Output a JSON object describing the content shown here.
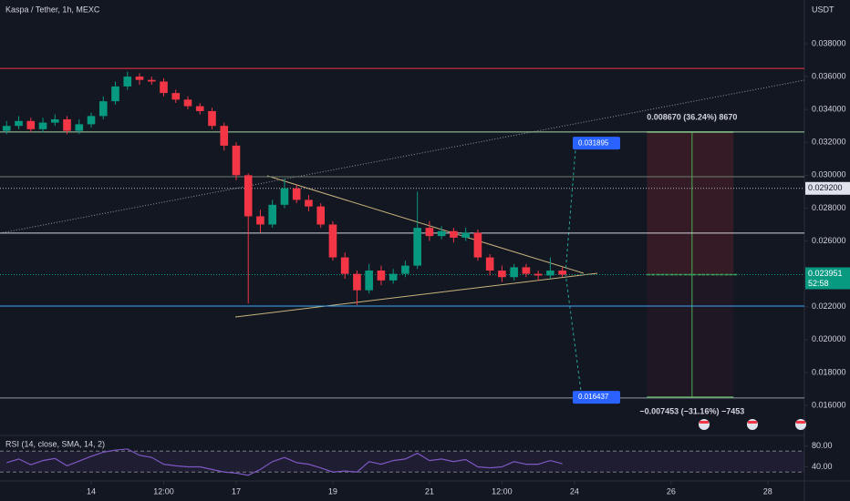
{
  "chart_data": {
    "type": "candlestick",
    "title": "Kaspa / Tether, 1h, MEXC",
    "y_axis_label": "USDT",
    "x": [
      -42,
      -36,
      -30,
      -24,
      -18,
      -12,
      -6,
      0,
      6,
      12,
      18,
      24,
      30,
      36,
      42,
      48,
      54,
      60,
      66,
      72,
      78,
      84,
      90,
      96,
      102,
      108,
      114,
      120,
      126,
      132,
      138,
      144,
      150,
      156,
      162,
      168,
      174,
      180,
      186,
      192,
      198,
      204,
      210,
      216,
      222,
      228,
      234
    ],
    "open": [
      0.0327,
      0.033,
      0.0333,
      0.0328,
      0.0332,
      0.0334,
      0.0327,
      0.0331,
      0.0336,
      0.0345,
      0.0354,
      0.036,
      0.0358,
      0.0357,
      0.035,
      0.0346,
      0.0342,
      0.0339,
      0.033,
      0.0318,
      0.03,
      0.0275,
      0.027,
      0.0282,
      0.0292,
      0.0285,
      0.0281,
      0.027,
      0.025,
      0.024,
      0.023,
      0.0242,
      0.0236,
      0.024,
      0.0245,
      0.0268,
      0.0263,
      0.0266,
      0.0262,
      0.0265,
      0.025,
      0.0242,
      0.0238,
      0.0244,
      0.024,
      0.0239,
      0.0242
    ],
    "high": [
      0.0333,
      0.0336,
      0.0335,
      0.0335,
      0.0337,
      0.0336,
      0.0334,
      0.0338,
      0.0348,
      0.0357,
      0.0363,
      0.0362,
      0.036,
      0.0359,
      0.0352,
      0.0348,
      0.0344,
      0.0341,
      0.0332,
      0.032,
      0.0301,
      0.0279,
      0.0285,
      0.0298,
      0.0294,
      0.0288,
      0.0283,
      0.0272,
      0.0253,
      0.0242,
      0.0246,
      0.0245,
      0.0243,
      0.0248,
      0.029,
      0.0272,
      0.0269,
      0.0268,
      0.0268,
      0.0267,
      0.0252,
      0.0245,
      0.0246,
      0.0246,
      0.0242,
      0.025,
      0.0244
    ],
    "low": [
      0.0325,
      0.0328,
      0.0326,
      0.0326,
      0.033,
      0.0325,
      0.0325,
      0.0329,
      0.0334,
      0.0343,
      0.0352,
      0.0355,
      0.0355,
      0.0348,
      0.0344,
      0.034,
      0.0337,
      0.0328,
      0.0315,
      0.0297,
      0.0222,
      0.0265,
      0.0268,
      0.028,
      0.0283,
      0.0278,
      0.0268,
      0.0248,
      0.0237,
      0.0221,
      0.0228,
      0.0233,
      0.0234,
      0.0238,
      0.0243,
      0.026,
      0.0261,
      0.0259,
      0.026,
      0.0248,
      0.0239,
      0.0235,
      0.0236,
      0.0238,
      0.0236,
      0.0237,
      0.0238
    ],
    "close": [
      0.033,
      0.0333,
      0.0328,
      0.0332,
      0.0334,
      0.0327,
      0.0331,
      0.0336,
      0.0345,
      0.0354,
      0.036,
      0.0358,
      0.0357,
      0.035,
      0.0346,
      0.0342,
      0.0339,
      0.033,
      0.0318,
      0.03,
      0.0275,
      0.027,
      0.0282,
      0.0292,
      0.0285,
      0.0281,
      0.027,
      0.025,
      0.024,
      0.023,
      0.0242,
      0.0236,
      0.024,
      0.0245,
      0.0268,
      0.0263,
      0.0266,
      0.0262,
      0.0265,
      0.025,
      0.0242,
      0.0238,
      0.0244,
      0.024,
      0.0239,
      0.0242,
      0.023951
    ],
    "up_color": "#089981",
    "down_color": "#f23645",
    "countdown": "52:58",
    "xlim": [
      -45.3,
      354.2
    ],
    "xticks": [
      {
        "value": 0,
        "label": "14"
      },
      {
        "value": 36,
        "label": "12:00"
      },
      {
        "value": 72,
        "label": "17"
      },
      {
        "value": 120,
        "label": "19"
      },
      {
        "value": 168,
        "label": "21"
      },
      {
        "value": 204,
        "label": "12:00"
      },
      {
        "value": 240,
        "label": "24"
      },
      {
        "value": 288,
        "label": "26"
      },
      {
        "value": 336,
        "label": "28"
      }
    ],
    "ylim": [
      0.01417,
      0.04066
    ],
    "yticks": [
      {
        "value": 0.016,
        "label": "0.016000"
      },
      {
        "value": 0.018,
        "label": "0.018000"
      },
      {
        "value": 0.02,
        "label": "0.020000"
      },
      {
        "value": 0.022,
        "label": "0.022000"
      },
      {
        "value": 0.024,
        "label": "0.024000"
      },
      {
        "value": 0.026,
        "label": "0.026000"
      },
      {
        "value": 0.028,
        "label": "0.028000"
      },
      {
        "value": 0.03,
        "label": "0.030000"
      },
      {
        "value": 0.032,
        "label": "0.032000"
      },
      {
        "value": 0.034,
        "label": "0.034000"
      },
      {
        "value": 0.036,
        "label": "0.036000"
      },
      {
        "value": 0.038,
        "label": "0.038000"
      }
    ],
    "levels": [
      {
        "value": 0.0365,
        "color": "#f23645"
      },
      {
        "value": 0.03263,
        "color": "#a5d6a7"
      },
      {
        "value": 0.02991,
        "color": "#6f7f6c"
      },
      {
        "value": 0.0292,
        "label": "0.029200",
        "color": "#b2b5be",
        "dash": true
      },
      {
        "value": 0.02648,
        "color": "#d1d4dc"
      },
      {
        "value": 0.02204,
        "color": "#42a5f5"
      },
      {
        "value": 0.01645,
        "color": "#9598a1"
      }
    ],
    "position": {
      "target": 0.032621,
      "stop": 0.016498,
      "start": 276,
      "end": 319,
      "target_label": "0.008670 (36.24%) 8670",
      "stop_label": "−0.007453 (−31.16%) −7453"
    },
    "projection_tags": [
      {
        "value": 0.031895,
        "label": "0.031895"
      },
      {
        "value": 0.016437,
        "label": "0.016437"
      }
    ],
    "rsi": {
      "title": "RSI (14, close, SMA, 14, 2)",
      "color": "#7e57c2",
      "values": [
        48,
        55,
        44,
        52,
        56,
        42,
        51,
        60,
        68,
        72,
        74,
        62,
        58,
        45,
        42,
        40,
        40,
        35,
        30,
        28,
        24,
        35,
        50,
        58,
        48,
        45,
        38,
        30,
        32,
        30,
        50,
        45,
        52,
        55,
        66,
        52,
        55,
        50,
        54,
        40,
        38,
        40,
        50,
        45,
        45,
        52,
        46
      ],
      "ylim": [
        20,
        100
      ],
      "yticks": [
        {
          "value": 80,
          "label": "80.00"
        },
        {
          "value": 40,
          "label": "40.00"
        }
      ],
      "band": [
        70,
        30
      ]
    }
  }
}
